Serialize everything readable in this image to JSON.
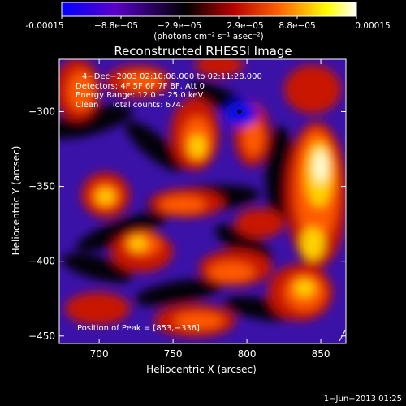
{
  "colorbar": {
    "tick_labels": [
      "-0.00015",
      "−8.8e−05",
      "−2.9e−05",
      "2.9e−05",
      "8.8e−05",
      "0.00015"
    ],
    "unit_label": "(photons cm⁻² s⁻¹ asec⁻²)",
    "range": [
      -0.00015,
      0.00015
    ],
    "stops": [
      "#0000ff",
      "#5a00c8",
      "#000000",
      "#b40000",
      "#ff6400",
      "#ffff00",
      "#ffffff"
    ]
  },
  "chart_data": {
    "type": "heatmap",
    "title": "Reconstructed RHESSI Image",
    "xlabel": "Heliocentric X (arcsec)",
    "ylabel": "Heliocentric Y (arcsec)",
    "xlim": [
      673,
      867
    ],
    "ylim": [
      -455,
      -265
    ],
    "x_ticks": [
      700,
      750,
      800,
      850
    ],
    "y_ticks": [
      -300,
      -350,
      -400,
      -450
    ],
    "x_tick_labels": [
      "700",
      "750",
      "800",
      "850"
    ],
    "y_tick_labels": [
      "−300",
      "−350",
      "−400",
      "−450"
    ],
    "annotations": [
      "4−Dec−2003 02:10:08.000 to 02:11:28.000",
      "Detectors: 4F 5F 6F 7F 8F, Att 0",
      "Energy Range: 12.0 − 25.0 keV",
      "Clean     Total counts: 674."
    ],
    "peak_text": "Position of Peak = [853,−336]",
    "peak_position": [
      853,
      -336
    ],
    "min_marker": [
      795,
      -300
    ],
    "grid": false
  },
  "footer": {
    "timestamp": "1−Jun−2013 01:25"
  }
}
